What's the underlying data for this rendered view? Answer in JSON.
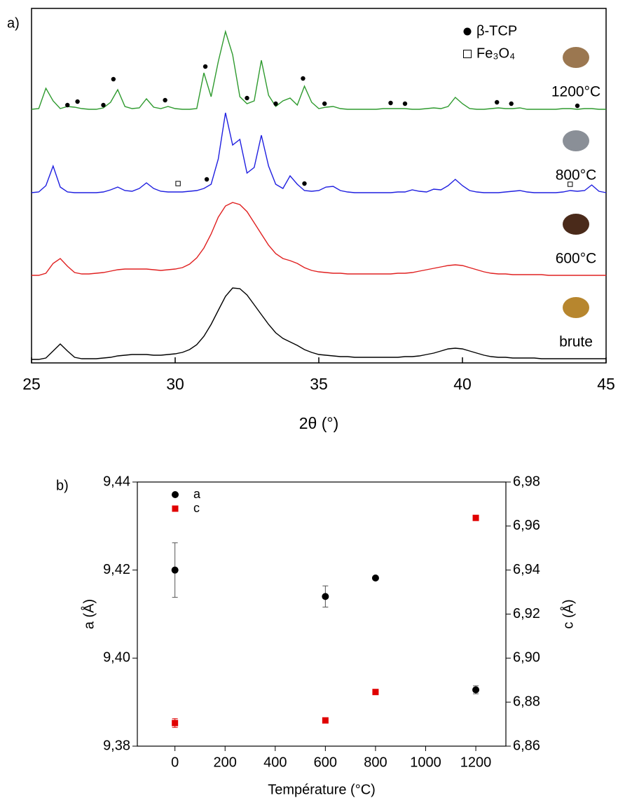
{
  "chart_data": [
    {
      "type": "line",
      "panel_label": "a)",
      "x_label": "2θ (°)",
      "xlim": [
        25,
        45
      ],
      "xticks": [
        25,
        30,
        35,
        40,
        45
      ],
      "x": [
        25,
        25.25,
        25.5,
        25.75,
        26,
        26.25,
        26.5,
        26.75,
        27,
        27.25,
        27.5,
        27.75,
        28,
        28.25,
        28.5,
        28.75,
        29,
        29.25,
        29.5,
        29.75,
        30,
        30.25,
        30.5,
        30.75,
        31,
        31.25,
        31.5,
        31.75,
        32,
        32.25,
        32.5,
        32.75,
        33,
        33.25,
        33.5,
        33.75,
        34,
        34.25,
        34.5,
        34.75,
        35,
        35.25,
        35.5,
        35.75,
        36,
        36.25,
        36.5,
        36.75,
        37,
        37.25,
        37.5,
        37.75,
        38,
        38.25,
        38.5,
        38.75,
        39,
        39.25,
        39.5,
        39.75,
        40,
        40.25,
        40.5,
        40.75,
        41,
        41.25,
        41.5,
        41.75,
        42,
        42.25,
        42.5,
        42.75,
        43,
        43.25,
        43.5,
        43.75,
        44,
        44.25,
        44.5,
        44.75,
        45
      ],
      "markers": [
        {
          "name": "β-TCP",
          "shape": "circle"
        },
        {
          "name": "Fe₃O₄",
          "shape": "square"
        }
      ],
      "series": [
        {
          "name": "1200°C",
          "color": "#2e9a2e",
          "sample_color": "#9b7750",
          "values": [
            2,
            3,
            32,
            14,
            3,
            6,
            5,
            3,
            2,
            2,
            4,
            12,
            30,
            6,
            3,
            4,
            17,
            5,
            3,
            6,
            3,
            2,
            2,
            3,
            54,
            20,
            70,
            113,
            80,
            20,
            10,
            14,
            72,
            22,
            6,
            14,
            18,
            8,
            35,
            12,
            3,
            5,
            6,
            3,
            2,
            2,
            2,
            2,
            2,
            3,
            3,
            3,
            3,
            2,
            2,
            3,
            4,
            3,
            6,
            19,
            10,
            3,
            2,
            2,
            3,
            4,
            3,
            3,
            4,
            2,
            2,
            2,
            2,
            2,
            3,
            3,
            2,
            3,
            3,
            2,
            2
          ],
          "peaks": [
            {
              "x": 26.25,
              "y": 8,
              "marker": 0
            },
            {
              "x": 26.6,
              "y": 13,
              "marker": 0
            },
            {
              "x": 27.5,
              "y": 8,
              "marker": 0
            },
            {
              "x": 27.85,
              "y": 45,
              "marker": 0
            },
            {
              "x": 29.65,
              "y": 15,
              "marker": 0
            },
            {
              "x": 31.05,
              "y": 63,
              "marker": 0
            },
            {
              "x": 32.5,
              "y": 18,
              "marker": 0
            },
            {
              "x": 33.5,
              "y": 10,
              "marker": 0
            },
            {
              "x": 34.45,
              "y": 46,
              "marker": 0
            },
            {
              "x": 35.2,
              "y": 10,
              "marker": 0
            },
            {
              "x": 37.5,
              "y": 11,
              "marker": 0
            },
            {
              "x": 38,
              "y": 10,
              "marker": 0
            },
            {
              "x": 41.2,
              "y": 12,
              "marker": 0
            },
            {
              "x": 41.7,
              "y": 10,
              "marker": 0
            },
            {
              "x": 44,
              "y": 7,
              "marker": 0
            }
          ]
        },
        {
          "name": "800°C",
          "color": "#1f1fe0",
          "sample_color": "#8a8f97",
          "values": [
            2,
            3,
            12,
            40,
            10,
            3,
            2,
            2,
            2,
            2,
            3,
            6,
            10,
            5,
            4,
            8,
            16,
            8,
            4,
            3,
            3,
            3,
            4,
            5,
            8,
            14,
            50,
            116,
            70,
            78,
            30,
            38,
            84,
            40,
            14,
            8,
            26,
            14,
            5,
            4,
            5,
            10,
            11,
            5,
            3,
            2,
            2,
            2,
            2,
            2,
            2,
            3,
            3,
            6,
            4,
            3,
            7,
            6,
            12,
            21,
            12,
            5,
            3,
            2,
            2,
            2,
            3,
            4,
            5,
            3,
            2,
            2,
            2,
            2,
            3,
            5,
            4,
            5,
            13,
            4,
            2
          ],
          "peaks": [
            {
              "x": 30.1,
              "y": 15,
              "marker": 1
            },
            {
              "x": 31.1,
              "y": 21,
              "marker": 0
            },
            {
              "x": 34.5,
              "y": 15,
              "marker": 0
            },
            {
              "x": 43.75,
              "y": 14,
              "marker": 1
            }
          ]
        },
        {
          "name": "600°C",
          "color": "#e02020",
          "sample_color": "#4a2a1a",
          "values": [
            3,
            3,
            6,
            20,
            27,
            16,
            7,
            5,
            5,
            6,
            7,
            9,
            11,
            12,
            12,
            12,
            12,
            11,
            10,
            11,
            12,
            14,
            19,
            28,
            42,
            62,
            86,
            102,
            107,
            104,
            94,
            78,
            62,
            46,
            34,
            27,
            24,
            20,
            14,
            10,
            8,
            7,
            6,
            6,
            5,
            5,
            5,
            5,
            5,
            5,
            5,
            6,
            6,
            7,
            9,
            11,
            13,
            15,
            17,
            18,
            17,
            14,
            11,
            8,
            6,
            5,
            5,
            4,
            4,
            4,
            4,
            4,
            3,
            3,
            3,
            3,
            3,
            3,
            3,
            3,
            3
          ],
          "peaks": []
        },
        {
          "name": "brute",
          "color": "#000000",
          "sample_color": "#b7862e",
          "values": [
            2,
            2,
            4,
            14,
            24,
            14,
            5,
            3,
            3,
            3,
            4,
            5,
            7,
            8,
            9,
            9,
            9,
            8,
            8,
            9,
            10,
            12,
            16,
            23,
            35,
            52,
            72,
            92,
            104,
            103,
            94,
            80,
            66,
            52,
            40,
            32,
            27,
            22,
            16,
            12,
            9,
            8,
            7,
            6,
            6,
            5,
            5,
            5,
            5,
            5,
            5,
            5,
            6,
            6,
            7,
            9,
            11,
            14,
            17,
            18,
            17,
            14,
            11,
            8,
            6,
            5,
            5,
            4,
            4,
            4,
            4,
            3,
            3,
            3,
            3,
            3,
            3,
            3,
            3,
            3,
            3
          ],
          "peaks": []
        }
      ]
    },
    {
      "type": "scatter",
      "panel_label": "b)",
      "x_label": "Température (°C)",
      "y_label": "a (Å)",
      "y2_label": "c (Å)",
      "xlim": [
        -150,
        1320
      ],
      "xticks": [
        0,
        200,
        400,
        600,
        800,
        1000,
        1200
      ],
      "ylim": [
        9.38,
        9.44
      ],
      "yticks": [
        {
          "value": 9.38,
          "label": "9,38"
        },
        {
          "value": 9.4,
          "label": "9,40"
        },
        {
          "value": 9.42,
          "label": "9,42"
        },
        {
          "value": 9.44,
          "label": "9,44"
        }
      ],
      "y2lim": [
        6.86,
        6.98
      ],
      "y2ticks": [
        {
          "value": 6.86,
          "label": "6,86"
        },
        {
          "value": 6.88,
          "label": "6,88"
        },
        {
          "value": 6.9,
          "label": "6,90"
        },
        {
          "value": 6.92,
          "label": "6,92"
        },
        {
          "value": 6.94,
          "label": "6,94"
        },
        {
          "value": 6.96,
          "label": "6,96"
        },
        {
          "value": 6.98,
          "label": "6,98"
        }
      ],
      "series": [
        {
          "name": "a",
          "color": "#000000",
          "marker": "circle",
          "x": [
            0,
            600,
            800,
            1200
          ],
          "values": [
            9.42,
            9.414,
            9.4182,
            9.3928
          ],
          "errors": [
            0.0062,
            0.0024,
            0,
            0.0009
          ]
        },
        {
          "name": "c",
          "color": "#e00000",
          "marker": "square",
          "axis": "y2",
          "x": [
            0,
            600,
            800,
            1200
          ],
          "values": [
            6.8705,
            6.8717,
            6.8846,
            6.9637
          ],
          "errors": [
            0.002,
            0.0008,
            0,
            0
          ]
        }
      ]
    }
  ]
}
